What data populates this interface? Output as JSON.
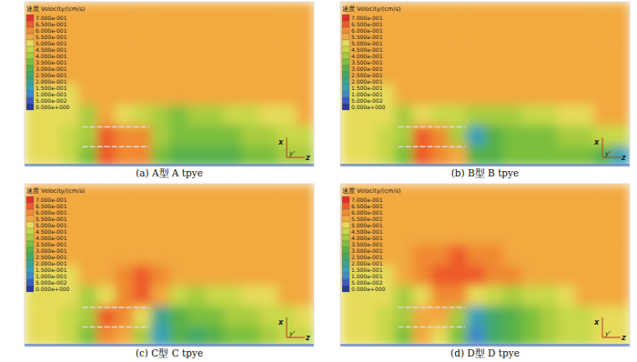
{
  "chart_data": [
    {
      "type": "heatmap",
      "title": "(a) A型 A tpye",
      "colorbar": {
        "title": "速度 Velocity/(cm/s)",
        "ticks": [
          {
            "value": 0.7,
            "label": "7.000e-001"
          },
          {
            "value": 0.65,
            "label": "6.500e-001"
          },
          {
            "value": 0.6,
            "label": "6.000e-001"
          },
          {
            "value": 0.55,
            "label": "5.500e-001"
          },
          {
            "value": 0.5,
            "label": "5.000e-001"
          },
          {
            "value": 0.45,
            "label": "4.500e-001"
          },
          {
            "value": 0.4,
            "label": "4.000e-001"
          },
          {
            "value": 0.35,
            "label": "3.500e-001"
          },
          {
            "value": 0.3,
            "label": "3.000e-001"
          },
          {
            "value": 0.25,
            "label": "2.500e-001"
          },
          {
            "value": 0.2,
            "label": "2.000e-001"
          },
          {
            "value": 0.15,
            "label": "1.500e-001"
          },
          {
            "value": 0.1,
            "label": "1.000e-001"
          },
          {
            "value": 0.05,
            "label": "5.000e-002"
          },
          {
            "value": 0,
            "label": "0.000e+000"
          }
        ],
        "colors": [
          "#e0302a",
          "#ee5a2c",
          "#f08a32",
          "#f2a941",
          "#e6dc5a",
          "#c8d84a",
          "#a8cc40",
          "#7cbf3c",
          "#58b048",
          "#44a868",
          "#3aa490",
          "#38a0b8",
          "#3c88c8",
          "#3a5cc0",
          "#2a3a9a"
        ]
      },
      "axes_triad": {
        "up": "x",
        "out": "y'",
        "right": "z"
      },
      "cells": [
        [
          0.58,
          0.58,
          0.58,
          0.58,
          0.58,
          0.58,
          0.58,
          0.58,
          0.58,
          0.58,
          0.58,
          0.58,
          0.58,
          0.58,
          0.58,
          0.58
        ],
        [
          0.58,
          0.58,
          0.58,
          0.58,
          0.58,
          0.58,
          0.58,
          0.58,
          0.58,
          0.58,
          0.58,
          0.58,
          0.58,
          0.58,
          0.58,
          0.58
        ],
        [
          0.58,
          0.58,
          0.58,
          0.58,
          0.58,
          0.58,
          0.58,
          0.58,
          0.58,
          0.58,
          0.58,
          0.58,
          0.58,
          0.58,
          0.58,
          0.58
        ],
        [
          0.58,
          0.58,
          0.58,
          0.58,
          0.58,
          0.58,
          0.58,
          0.58,
          0.58,
          0.58,
          0.58,
          0.58,
          0.58,
          0.58,
          0.58,
          0.58
        ],
        [
          0.52,
          0.52,
          0.52,
          0.55,
          0.58,
          0.58,
          0.58,
          0.58,
          0.58,
          0.58,
          0.58,
          0.58,
          0.58,
          0.58,
          0.58,
          0.58
        ],
        [
          0.52,
          0.52,
          0.52,
          0.42,
          0.55,
          0.5,
          0.45,
          0.4,
          0.38,
          0.4,
          0.42,
          0.45,
          0.48,
          0.5,
          0.52,
          0.55
        ],
        [
          0.5,
          0.5,
          0.48,
          0.4,
          0.66,
          0.64,
          0.62,
          0.42,
          0.35,
          0.38,
          0.36,
          0.38,
          0.4,
          0.42,
          0.45,
          0.48
        ],
        [
          0.5,
          0.5,
          0.45,
          0.35,
          0.66,
          0.62,
          0.6,
          0.35,
          0.3,
          0.32,
          0.3,
          0.32,
          0.35,
          0.35,
          0.4,
          0.42
        ]
      ]
    },
    {
      "type": "heatmap",
      "title": "(b) B型 B tpye",
      "colorbar": {
        "title": "速度 Velocity/(cm/s)",
        "ticks": [
          {
            "value": 0.7,
            "label": "7.000e-001"
          },
          {
            "value": 0.65,
            "label": "6.500e-001"
          },
          {
            "value": 0.6,
            "label": "6.000e-001"
          },
          {
            "value": 0.55,
            "label": "5.500e-001"
          },
          {
            "value": 0.5,
            "label": "5.000e-001"
          },
          {
            "value": 0.45,
            "label": "4.500e-001"
          },
          {
            "value": 0.4,
            "label": "4.000e-001"
          },
          {
            "value": 0.35,
            "label": "3.500e-001"
          },
          {
            "value": 0.3,
            "label": "3.000e-001"
          },
          {
            "value": 0.25,
            "label": "2.500e-001"
          },
          {
            "value": 0.2,
            "label": "2.000e-001"
          },
          {
            "value": 0.15,
            "label": "1.500e-001"
          },
          {
            "value": 0.1,
            "label": "1.000e-001"
          },
          {
            "value": 0.05,
            "label": "5.000e-002"
          },
          {
            "value": 0,
            "label": "0.000e+000"
          }
        ],
        "colors": [
          "#e0302a",
          "#ee5a2c",
          "#f08a32",
          "#f2a941",
          "#e6dc5a",
          "#c8d84a",
          "#a8cc40",
          "#7cbf3c",
          "#58b048",
          "#44a868",
          "#3aa490",
          "#38a0b8",
          "#3c88c8",
          "#3a5cc0",
          "#2a3a9a"
        ]
      },
      "axes_triad": {
        "up": "x",
        "out": "y'",
        "right": "z"
      },
      "cells": [
        [
          0.58,
          0.58,
          0.58,
          0.58,
          0.58,
          0.58,
          0.58,
          0.58,
          0.58,
          0.58,
          0.58,
          0.58,
          0.58,
          0.58,
          0.58,
          0.58
        ],
        [
          0.58,
          0.58,
          0.58,
          0.58,
          0.58,
          0.58,
          0.58,
          0.58,
          0.58,
          0.58,
          0.58,
          0.58,
          0.58,
          0.58,
          0.58,
          0.58
        ],
        [
          0.58,
          0.58,
          0.58,
          0.58,
          0.58,
          0.58,
          0.58,
          0.58,
          0.58,
          0.58,
          0.58,
          0.58,
          0.58,
          0.58,
          0.58,
          0.58
        ],
        [
          0.58,
          0.58,
          0.58,
          0.58,
          0.58,
          0.58,
          0.58,
          0.58,
          0.58,
          0.58,
          0.58,
          0.58,
          0.58,
          0.58,
          0.58,
          0.58
        ],
        [
          0.52,
          0.52,
          0.52,
          0.55,
          0.58,
          0.58,
          0.58,
          0.58,
          0.58,
          0.58,
          0.58,
          0.58,
          0.58,
          0.58,
          0.58,
          0.58
        ],
        [
          0.52,
          0.52,
          0.52,
          0.42,
          0.52,
          0.48,
          0.45,
          0.42,
          0.4,
          0.42,
          0.45,
          0.48,
          0.5,
          0.52,
          0.55,
          0.58
        ],
        [
          0.5,
          0.5,
          0.48,
          0.4,
          0.66,
          0.62,
          0.4,
          0.18,
          0.3,
          0.35,
          0.38,
          0.38,
          0.4,
          0.42,
          0.45,
          0.48
        ],
        [
          0.5,
          0.5,
          0.45,
          0.35,
          0.66,
          0.6,
          0.55,
          0.3,
          0.32,
          0.35,
          0.35,
          0.35,
          0.38,
          0.38,
          0.3,
          0.15
        ]
      ]
    },
    {
      "type": "heatmap",
      "title": "(c) C型 C tpye",
      "colorbar": {
        "title": "速度 Velocity/(cm/s)",
        "ticks": [
          {
            "value": 0.7,
            "label": "7.000e-001"
          },
          {
            "value": 0.65,
            "label": "6.500e-001"
          },
          {
            "value": 0.6,
            "label": "6.000e-001"
          },
          {
            "value": 0.55,
            "label": "5.500e-001"
          },
          {
            "value": 0.5,
            "label": "5.000e-001"
          },
          {
            "value": 0.45,
            "label": "4.500e-001"
          },
          {
            "value": 0.4,
            "label": "4.000e-001"
          },
          {
            "value": 0.35,
            "label": "3.500e-001"
          },
          {
            "value": 0.3,
            "label": "3.000e-001"
          },
          {
            "value": 0.25,
            "label": "2.500e-001"
          },
          {
            "value": 0.2,
            "label": "2.000e-001"
          },
          {
            "value": 0.15,
            "label": "1.500e-001"
          },
          {
            "value": 0.1,
            "label": "1.000e-001"
          },
          {
            "value": 0.05,
            "label": "5.000e-002"
          },
          {
            "value": 0,
            "label": "0.000e+000"
          }
        ],
        "colors": [
          "#e0302a",
          "#ee5a2c",
          "#f08a32",
          "#f2a941",
          "#e6dc5a",
          "#c8d84a",
          "#a8cc40",
          "#7cbf3c",
          "#58b048",
          "#44a868",
          "#3aa490",
          "#38a0b8",
          "#3c88c8",
          "#3a5cc0",
          "#2a3a9a"
        ]
      },
      "axes_triad": {
        "up": "x",
        "out": "y'",
        "right": "z"
      },
      "cells": [
        [
          0.58,
          0.58,
          0.58,
          0.58,
          0.58,
          0.58,
          0.58,
          0.58,
          0.58,
          0.58,
          0.58,
          0.58,
          0.58,
          0.58,
          0.58,
          0.58
        ],
        [
          0.58,
          0.58,
          0.58,
          0.58,
          0.58,
          0.58,
          0.58,
          0.58,
          0.58,
          0.58,
          0.58,
          0.58,
          0.58,
          0.58,
          0.58,
          0.58
        ],
        [
          0.58,
          0.58,
          0.58,
          0.58,
          0.58,
          0.58,
          0.58,
          0.58,
          0.58,
          0.58,
          0.58,
          0.58,
          0.58,
          0.58,
          0.58,
          0.58
        ],
        [
          0.58,
          0.58,
          0.58,
          0.58,
          0.58,
          0.58,
          0.58,
          0.58,
          0.58,
          0.58,
          0.58,
          0.58,
          0.58,
          0.58,
          0.58,
          0.58
        ],
        [
          0.52,
          0.52,
          0.52,
          0.55,
          0.58,
          0.6,
          0.66,
          0.62,
          0.58,
          0.58,
          0.58,
          0.58,
          0.58,
          0.58,
          0.58,
          0.58
        ],
        [
          0.52,
          0.52,
          0.52,
          0.42,
          0.5,
          0.62,
          0.66,
          0.55,
          0.45,
          0.42,
          0.45,
          0.48,
          0.5,
          0.52,
          0.55,
          0.58
        ],
        [
          0.5,
          0.5,
          0.48,
          0.4,
          0.66,
          0.62,
          0.5,
          0.2,
          0.3,
          0.35,
          0.38,
          0.4,
          0.42,
          0.45,
          0.48,
          0.5
        ],
        [
          0.5,
          0.5,
          0.45,
          0.35,
          0.62,
          0.58,
          0.4,
          0.15,
          0.3,
          0.25,
          0.3,
          0.35,
          0.38,
          0.4,
          0.45,
          0.48
        ]
      ]
    },
    {
      "type": "heatmap",
      "title": "(d) D型 D tpye",
      "colorbar": {
        "title": "速度 Velocity/(cm/s)",
        "ticks": [
          {
            "value": 0.7,
            "label": "7.000e-001"
          },
          {
            "value": 0.65,
            "label": "6.500e-001"
          },
          {
            "value": 0.6,
            "label": "6.000e-001"
          },
          {
            "value": 0.55,
            "label": "5.500e-001"
          },
          {
            "value": 0.5,
            "label": "5.000e-001"
          },
          {
            "value": 0.45,
            "label": "4.500e-001"
          },
          {
            "value": 0.4,
            "label": "4.000e-001"
          },
          {
            "value": 0.35,
            "label": "3.500e-001"
          },
          {
            "value": 0.3,
            "label": "3.000e-001"
          },
          {
            "value": 0.25,
            "label": "2.500e-001"
          },
          {
            "value": 0.2,
            "label": "2.000e-001"
          },
          {
            "value": 0.15,
            "label": "1.500e-001"
          },
          {
            "value": 0.1,
            "label": "1.000e-001"
          },
          {
            "value": 0.05,
            "label": "5.000e-002"
          },
          {
            "value": 0,
            "label": "0.000e+000"
          }
        ],
        "colors": [
          "#e0302a",
          "#ee5a2c",
          "#f08a32",
          "#f2a941",
          "#e6dc5a",
          "#c8d84a",
          "#a8cc40",
          "#7cbf3c",
          "#58b048",
          "#44a868",
          "#3aa490",
          "#38a0b8",
          "#3c88c8",
          "#3a5cc0",
          "#2a3a9a"
        ]
      },
      "axes_triad": {
        "up": "x",
        "out": "y'",
        "right": "z"
      },
      "cells": [
        [
          0.58,
          0.58,
          0.58,
          0.58,
          0.58,
          0.58,
          0.58,
          0.58,
          0.58,
          0.58,
          0.58,
          0.58,
          0.58,
          0.58,
          0.58,
          0.58
        ],
        [
          0.58,
          0.58,
          0.58,
          0.58,
          0.58,
          0.58,
          0.58,
          0.58,
          0.58,
          0.58,
          0.58,
          0.58,
          0.58,
          0.58,
          0.58,
          0.58
        ],
        [
          0.58,
          0.58,
          0.58,
          0.58,
          0.58,
          0.58,
          0.58,
          0.58,
          0.58,
          0.58,
          0.58,
          0.58,
          0.58,
          0.58,
          0.58,
          0.58
        ],
        [
          0.58,
          0.58,
          0.58,
          0.58,
          0.6,
          0.64,
          0.66,
          0.64,
          0.6,
          0.58,
          0.58,
          0.58,
          0.58,
          0.58,
          0.58,
          0.58
        ],
        [
          0.52,
          0.52,
          0.52,
          0.55,
          0.62,
          0.66,
          0.68,
          0.66,
          0.62,
          0.6,
          0.58,
          0.58,
          0.58,
          0.58,
          0.58,
          0.58
        ],
        [
          0.52,
          0.52,
          0.5,
          0.42,
          0.52,
          0.62,
          0.6,
          0.5,
          0.45,
          0.42,
          0.45,
          0.48,
          0.5,
          0.55,
          0.55,
          0.58
        ],
        [
          0.5,
          0.5,
          0.48,
          0.4,
          0.58,
          0.55,
          0.4,
          0.15,
          0.25,
          0.32,
          0.38,
          0.42,
          0.45,
          0.48,
          0.5,
          0.52
        ],
        [
          0.5,
          0.5,
          0.45,
          0.35,
          0.55,
          0.5,
          0.35,
          0.1,
          0.25,
          0.3,
          0.35,
          0.4,
          0.45,
          0.48,
          0.5,
          0.52
        ]
      ]
    }
  ]
}
